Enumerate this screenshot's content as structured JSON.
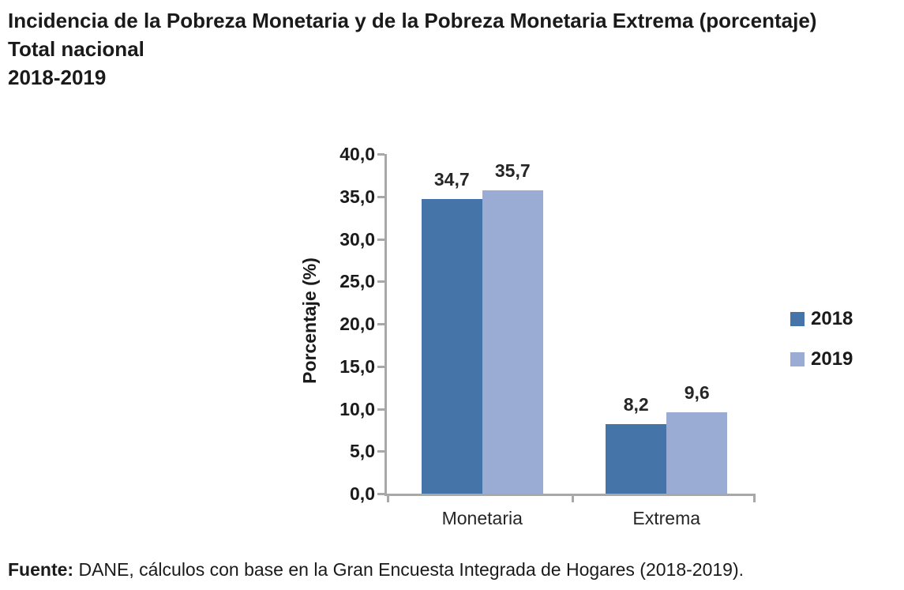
{
  "title": {
    "line1": "Incidencia de la Pobreza Monetaria y de la Pobreza Monetaria Extrema (porcentaje)",
    "line2": "Total nacional",
    "line3": "2018-2019"
  },
  "chart_data": {
    "type": "bar",
    "categories": [
      "Monetaria",
      "Extrema"
    ],
    "series": [
      {
        "name": "2018",
        "color": "#4474A8",
        "values": [
          34.7,
          8.2
        ]
      },
      {
        "name": "2019",
        "color": "#9AABD4",
        "values": [
          35.7,
          9.6
        ]
      }
    ],
    "title": "",
    "xlabel": "",
    "ylabel": "Porcentaje (%)",
    "ylim": [
      0,
      40
    ],
    "ytick_step": 5,
    "ytick_labels": [
      "0,0",
      "5,0",
      "10,0",
      "15,0",
      "20,0",
      "25,0",
      "30,0",
      "35,0",
      "40,0"
    ],
    "data_labels": {
      "2018": [
        "34,7",
        "8,2"
      ],
      "2019": [
        "35,7",
        "9,6"
      ]
    },
    "decimal_separator": ",",
    "grid": false,
    "legend_position": "right",
    "legend": [
      "2018",
      "2019"
    ],
    "axis_color": "#A8A8A8"
  },
  "footer": {
    "label": "Fuente:",
    "text": " DANE, cálculos con base en la Gran Encuesta Integrada de Hogares (2018-2019)."
  }
}
